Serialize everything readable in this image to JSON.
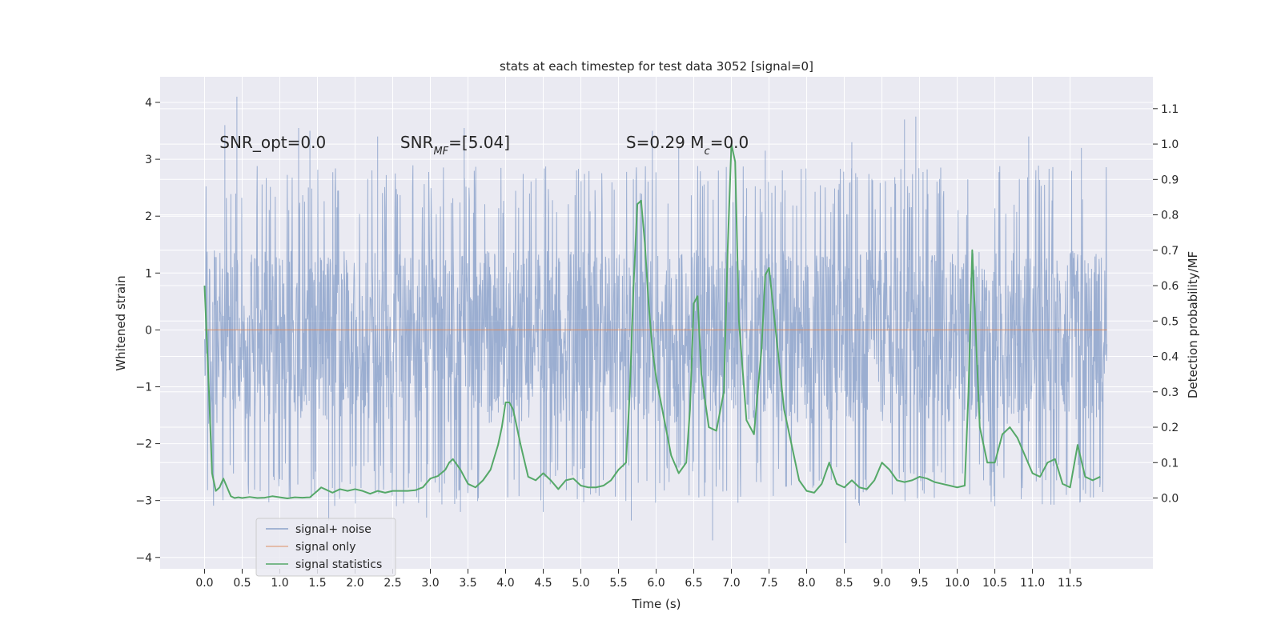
{
  "chart_data": {
    "type": "line",
    "title": "stats at each timestep for test data 3052 [signal=0]",
    "xlabel": "Time (s)",
    "ylabel": "Whitened strain",
    "y2label": "Detection probability/MF",
    "xlim": [
      -0.59,
      12.6
    ],
    "ylim": [
      -4.2,
      4.45
    ],
    "y2lim": [
      -0.2,
      1.19
    ],
    "x_ticks": [
      0.0,
      0.5,
      1.0,
      1.5,
      2.0,
      2.5,
      3.0,
      3.5,
      4.0,
      4.5,
      5.0,
      5.5,
      6.0,
      6.5,
      7.0,
      7.5,
      8.0,
      8.5,
      9.0,
      9.5,
      10.0,
      10.5,
      11.0,
      11.5
    ],
    "x_tick_labels": [
      "0.0",
      "0.5",
      "1.0",
      "1.5",
      "2.0",
      "2.5",
      "3.0",
      "3.5",
      "4.0",
      "4.5",
      "5.0",
      "5.5",
      "6.0",
      "6.5",
      "7.0",
      "7.5",
      "8.0",
      "8.5",
      "9.0",
      "9.5",
      "10.0",
      "10.5",
      "11.0",
      "11.5"
    ],
    "y_ticks": [
      -4,
      -3,
      -2,
      -1,
      0,
      1,
      2,
      3,
      4
    ],
    "y_tick_labels": [
      "−4",
      "−3",
      "−2",
      "−1",
      "0",
      "1",
      "2",
      "3",
      "4"
    ],
    "y2_ticks": [
      0.0,
      0.1,
      0.2,
      0.3,
      0.4,
      0.5,
      0.6,
      0.7,
      0.8,
      0.9,
      1.0,
      1.1
    ],
    "y2_tick_labels": [
      "0.0",
      "0.1",
      "0.2",
      "0.3",
      "0.4",
      "0.5",
      "0.6",
      "0.7",
      "0.8",
      "0.9",
      "1.0",
      "1.1"
    ],
    "grid": true,
    "legend_position": "lower-left",
    "annotations": [
      {
        "text": "SNR_opt=0.0",
        "x": 0.2,
        "y": 3.3
      },
      {
        "text": "SNR_MF=[5.04]",
        "x": 2.6,
        "y": 3.3
      },
      {
        "text": "S=0.29   M_c=0.0",
        "x": 5.6,
        "y": 3.3
      }
    ],
    "series": [
      {
        "name": "signal+ noise",
        "color": "#4c72b0",
        "axis": "left",
        "kind": "noise",
        "x_range": [
          0.0,
          11.99
        ],
        "typical_range": [
          -1.65,
          1.4
        ],
        "envelope_range": [
          -2.3,
          2.0
        ],
        "peaks": [
          {
            "x": 0.43,
            "y": 4.1
          },
          {
            "x": 0.27,
            "y": 3.6
          },
          {
            "x": 1.25,
            "y": 3.55
          },
          {
            "x": 1.4,
            "y": 3.5
          },
          {
            "x": 2.3,
            "y": 3.4
          },
          {
            "x": 3.45,
            "y": 3.55
          },
          {
            "x": 5.95,
            "y": 3.5
          },
          {
            "x": 9.3,
            "y": 3.7
          },
          {
            "x": 9.45,
            "y": 3.75
          },
          {
            "x": 10.95,
            "y": 3.4
          },
          {
            "x": 11.65,
            "y": 3.2
          },
          {
            "x": 6.3,
            "y": 3.2
          },
          {
            "x": 8.6,
            "y": 3.3
          },
          {
            "x": 7.45,
            "y": 3.15
          }
        ],
        "troughs": [
          {
            "x": 1.65,
            "y": -3.35
          },
          {
            "x": 2.95,
            "y": -3.3
          },
          {
            "x": 3.4,
            "y": -3.2
          },
          {
            "x": 4.5,
            "y": -3.2
          },
          {
            "x": 5.67,
            "y": -3.35
          },
          {
            "x": 6.75,
            "y": -3.7
          },
          {
            "x": 8.52,
            "y": -3.75
          },
          {
            "x": 10.5,
            "y": -3.1
          },
          {
            "x": 11.45,
            "y": -2.9
          },
          {
            "x": 2.55,
            "y": -3.1
          }
        ]
      },
      {
        "name": "signal only",
        "color": "#dd8452",
        "axis": "left",
        "x": [
          0.0,
          11.99
        ],
        "y": [
          0.0,
          0.0
        ]
      },
      {
        "name": "signal statistics",
        "color": "#55a868",
        "axis": "right",
        "x": [
          0.0,
          0.05,
          0.1,
          0.15,
          0.2,
          0.25,
          0.3,
          0.35,
          0.4,
          0.45,
          0.5,
          0.6,
          0.7,
          0.8,
          0.9,
          1.0,
          1.1,
          1.2,
          1.3,
          1.4,
          1.5,
          1.55,
          1.6,
          1.7,
          1.8,
          1.9,
          2.0,
          2.1,
          2.2,
          2.3,
          2.4,
          2.5,
          2.6,
          2.7,
          2.8,
          2.9,
          3.0,
          3.1,
          3.2,
          3.25,
          3.3,
          3.4,
          3.5,
          3.6,
          3.7,
          3.8,
          3.9,
          3.95,
          4.0,
          4.05,
          4.1,
          4.2,
          4.3,
          4.4,
          4.5,
          4.6,
          4.7,
          4.8,
          4.9,
          5.0,
          5.1,
          5.2,
          5.3,
          5.4,
          5.5,
          5.55,
          5.6,
          5.65,
          5.7,
          5.75,
          5.8,
          5.85,
          5.9,
          5.95,
          6.0,
          6.1,
          6.2,
          6.3,
          6.4,
          6.45,
          6.5,
          6.55,
          6.6,
          6.7,
          6.8,
          6.9,
          6.95,
          7.0,
          7.05,
          7.1,
          7.2,
          7.3,
          7.4,
          7.45,
          7.5,
          7.6,
          7.7,
          7.8,
          7.9,
          8.0,
          8.1,
          8.2,
          8.3,
          8.4,
          8.5,
          8.6,
          8.7,
          8.8,
          8.9,
          9.0,
          9.1,
          9.2,
          9.3,
          9.4,
          9.5,
          9.6,
          9.7,
          9.8,
          9.9,
          10.0,
          10.1,
          10.15,
          10.2,
          10.25,
          10.3,
          10.4,
          10.5,
          10.6,
          10.7,
          10.8,
          10.9,
          11.0,
          11.1,
          11.2,
          11.3,
          11.4,
          11.5,
          11.6,
          11.7,
          11.8,
          11.9
        ],
        "y": [
          0.6,
          0.35,
          0.07,
          0.02,
          0.03,
          0.055,
          0.03,
          0.005,
          0.0,
          0.002,
          0.0,
          0.003,
          0.0,
          0.001,
          0.005,
          0.002,
          -0.001,
          0.002,
          0.001,
          0.002,
          0.02,
          0.03,
          0.025,
          0.015,
          0.025,
          0.02,
          0.025,
          0.02,
          0.012,
          0.02,
          0.015,
          0.02,
          0.02,
          0.02,
          0.022,
          0.03,
          0.055,
          0.062,
          0.08,
          0.1,
          0.11,
          0.08,
          0.04,
          0.03,
          0.05,
          0.08,
          0.15,
          0.2,
          0.27,
          0.27,
          0.25,
          0.15,
          0.06,
          0.05,
          0.07,
          0.05,
          0.025,
          0.05,
          0.055,
          0.035,
          0.03,
          0.03,
          0.035,
          0.05,
          0.08,
          0.09,
          0.1,
          0.3,
          0.6,
          0.83,
          0.84,
          0.72,
          0.55,
          0.42,
          0.34,
          0.23,
          0.12,
          0.07,
          0.1,
          0.25,
          0.55,
          0.57,
          0.35,
          0.2,
          0.19,
          0.3,
          0.7,
          1.0,
          0.95,
          0.5,
          0.22,
          0.18,
          0.42,
          0.63,
          0.65,
          0.45,
          0.25,
          0.15,
          0.05,
          0.02,
          0.015,
          0.04,
          0.1,
          0.04,
          0.03,
          0.05,
          0.03,
          0.025,
          0.05,
          0.1,
          0.08,
          0.05,
          0.045,
          0.05,
          0.06,
          0.055,
          0.045,
          0.04,
          0.035,
          0.03,
          0.035,
          0.3,
          0.7,
          0.45,
          0.2,
          0.1,
          0.1,
          0.18,
          0.2,
          0.17,
          0.12,
          0.07,
          0.06,
          0.1,
          0.11,
          0.04,
          0.03,
          0.15,
          0.06,
          0.05,
          0.06
        ]
      }
    ]
  }
}
